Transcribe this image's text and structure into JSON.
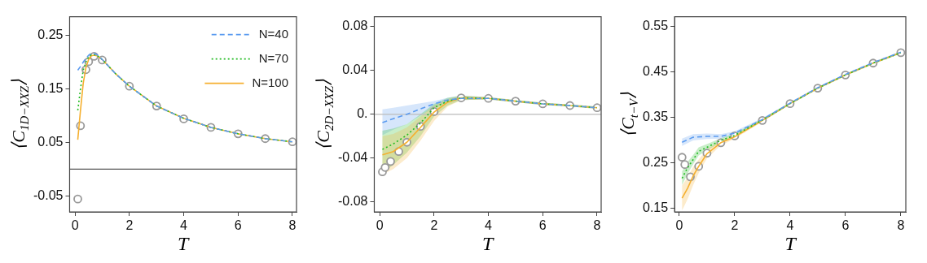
{
  "chart_data": [
    {
      "type": "line",
      "xlabel": "T",
      "ylabel": "⟨C$_{1D−XXZ}$⟩",
      "xlim": [
        -0.2,
        8.15
      ],
      "ylim": [
        -0.08,
        0.285
      ],
      "xticks": [
        0,
        2,
        4,
        6,
        8
      ],
      "yticks": [
        -0.05,
        0.05,
        0.15,
        0.25
      ],
      "legend": "top right",
      "ref_lines": [
        {
          "axis": "y",
          "value": 0,
          "color": "#555555"
        }
      ],
      "series": [
        {
          "name": "N=40",
          "color": "#5b9bf0",
          "line_style": "dashed",
          "marker": "none",
          "x": [
            0.1,
            0.2,
            0.3,
            0.4,
            0.5,
            0.6,
            0.7,
            0.8,
            1,
            1.5,
            2,
            3,
            4,
            5,
            6,
            7,
            8
          ],
          "values": [
            0.185,
            0.192,
            0.2,
            0.207,
            0.213,
            0.217,
            0.216,
            0.214,
            0.205,
            0.178,
            0.155,
            0.118,
            0.095,
            0.078,
            0.066,
            0.057,
            0.051
          ]
        },
        {
          "name": "N=70",
          "color": "#22bb22",
          "line_style": "dotted",
          "marker": "none",
          "x": [
            0.1,
            0.2,
            0.3,
            0.4,
            0.5,
            0.6,
            0.7,
            0.8,
            1,
            1.5,
            2,
            3,
            4,
            5,
            6,
            7,
            8
          ],
          "values": [
            0.11,
            0.15,
            0.185,
            0.2,
            0.21,
            0.214,
            0.214,
            0.213,
            0.205,
            0.178,
            0.155,
            0.118,
            0.095,
            0.078,
            0.066,
            0.057,
            0.051
          ]
        },
        {
          "name": "N=100",
          "color": "#f5b030",
          "line_style": "solid",
          "marker": "none",
          "x": [
            0.1,
            0.2,
            0.3,
            0.4,
            0.5,
            0.6,
            0.7,
            0.8,
            1,
            1.5,
            2,
            3,
            4,
            5,
            6,
            7,
            8
          ],
          "values": [
            0.055,
            0.11,
            0.16,
            0.19,
            0.205,
            0.212,
            0.213,
            0.212,
            0.205,
            0.178,
            0.155,
            0.118,
            0.095,
            0.078,
            0.066,
            0.057,
            0.051
          ]
        },
        {
          "type": "scatter",
          "color": "#999999",
          "marker": "circle",
          "x": [
            0.1,
            0.2,
            0.4,
            0.5,
            0.7,
            1,
            2,
            3,
            4,
            5,
            6,
            7,
            8
          ],
          "values": [
            -0.056,
            0.081,
            0.186,
            0.201,
            0.211,
            0.204,
            0.155,
            0.118,
            0.094,
            0.078,
            0.066,
            0.057,
            0.051
          ]
        }
      ]
    },
    {
      "type": "line",
      "xlabel": "T",
      "ylabel": "⟨C$_{2D−XXZ}$⟩",
      "xlim": [
        -0.2,
        8.15
      ],
      "ylim": [
        -0.089,
        0.089
      ],
      "xticks": [
        0,
        2,
        4,
        6,
        8
      ],
      "yticks": [
        -0.08,
        -0.04,
        {
          "value": 0,
          "label": "0."
        },
        0.04,
        0.08
      ],
      "ref_lines": [
        {
          "axis": "y",
          "value": 0,
          "color": "#bbbbbb"
        }
      ],
      "series": [
        {
          "color": "#5b9bf0",
          "line_style": "dashed",
          "marker": "none",
          "x": [
            0.1,
            0.5,
            1,
            1.5,
            2,
            2.5,
            3,
            4,
            5,
            6,
            7,
            8
          ],
          "values": [
            -0.0075,
            -0.004,
            0,
            0.005,
            0.0095,
            0.013,
            0.0145,
            0.0145,
            0.012,
            0.0095,
            0.008,
            0.006
          ],
          "lower": [
            -0.019,
            -0.014,
            -0.009,
            -0.001,
            0.006,
            0.011,
            0.013,
            0.0135,
            0.011,
            0.0085,
            0.007,
            0.005
          ],
          "upper": [
            0.0045,
            0.006,
            0.008,
            0.01,
            0.012,
            0.015,
            0.017,
            0.0155,
            0.013,
            0.0105,
            0.009,
            0.007
          ]
        },
        {
          "color": "#22bb22",
          "line_style": "dotted",
          "marker": "none",
          "x": [
            0.1,
            0.5,
            1,
            1.5,
            2,
            2.5,
            3,
            4,
            5,
            6,
            7,
            8
          ],
          "values": [
            -0.032,
            -0.027,
            -0.019,
            -0.008,
            0.006,
            0.012,
            0.015,
            0.0145,
            0.012,
            0.0095,
            0.008,
            0.006
          ],
          "lower": [
            -0.054,
            -0.046,
            -0.035,
            -0.02,
            -0.002,
            0.008,
            0.013,
            0.0135,
            0.011,
            0.0085,
            0.007,
            0.005
          ],
          "upper": [
            -0.015,
            -0.013,
            -0.009,
            0,
            0.0095,
            0.015,
            0.017,
            0.0155,
            0.013,
            0.0105,
            0.009,
            0.007
          ]
        },
        {
          "color": "#f5b030",
          "line_style": "solid",
          "marker": "none",
          "x": [
            0.1,
            0.5,
            1,
            1.5,
            2,
            2.5,
            3,
            4,
            5,
            6,
            7,
            8
          ],
          "values": [
            -0.037,
            -0.034,
            -0.0255,
            -0.012,
            0.002,
            0.011,
            0.015,
            0.0145,
            0.012,
            0.0095,
            0.008,
            0.006
          ],
          "lower": [
            -0.055,
            -0.05,
            -0.04,
            -0.024,
            -0.006,
            0.007,
            0.013,
            0.0135,
            0.011,
            0.0085,
            0.007,
            0.005
          ],
          "upper": [
            -0.02,
            -0.018,
            -0.012,
            -0.002,
            0.008,
            0.014,
            0.017,
            0.0155,
            0.013,
            0.0105,
            0.009,
            0.007
          ]
        },
        {
          "type": "scatter",
          "color": "#999999",
          "marker": "circle",
          "x": [
            0.1,
            0.2,
            0.4,
            0.7,
            1,
            1.5,
            2,
            3,
            4,
            5,
            6,
            7,
            8
          ],
          "values": [
            -0.0525,
            -0.0485,
            -0.043,
            -0.034,
            -0.0255,
            -0.011,
            0.0025,
            0.015,
            0.0145,
            0.012,
            0.0095,
            0.008,
            0.006
          ]
        }
      ]
    },
    {
      "type": "line",
      "xlabel": "T",
      "ylabel": "⟨C$_{t−V}$⟩",
      "xlim": [
        -0.17,
        8.18
      ],
      "ylim": [
        0.142,
        0.571
      ],
      "xticks": [
        0,
        2,
        4,
        6,
        8
      ],
      "yticks": [
        0.15,
        0.25,
        0.35,
        0.45,
        0.55
      ],
      "series": [
        {
          "color": "#5b9bf0",
          "line_style": "dashed",
          "marker": "none",
          "x": [
            0.1,
            0.5,
            1,
            1.5,
            2,
            3,
            4,
            5,
            6,
            7,
            8
          ],
          "values": [
            0.295,
            0.306,
            0.308,
            0.308,
            0.315,
            0.345,
            0.381,
            0.415,
            0.444,
            0.47,
            0.493
          ],
          "lower": [
            0.287,
            0.299,
            0.302,
            0.303,
            0.311,
            0.342,
            0.379,
            0.413,
            0.442,
            0.468,
            0.491
          ],
          "upper": [
            0.303,
            0.313,
            0.314,
            0.313,
            0.319,
            0.348,
            0.383,
            0.417,
            0.446,
            0.472,
            0.495
          ]
        },
        {
          "color": "#22bb22",
          "line_style": "dotted",
          "marker": "none",
          "x": [
            0.1,
            0.3,
            0.5,
            0.7,
            1,
            1.5,
            2,
            3,
            4,
            5,
            6,
            7,
            8
          ],
          "values": [
            0.216,
            0.239,
            0.257,
            0.275,
            0.284,
            0.299,
            0.31,
            0.344,
            0.38,
            0.414,
            0.443,
            0.469,
            0.492
          ],
          "lower": [
            0.201,
            0.226,
            0.247,
            0.266,
            0.277,
            0.294,
            0.306,
            0.341,
            0.378,
            0.412,
            0.441,
            0.467,
            0.49
          ],
          "upper": [
            0.231,
            0.252,
            0.267,
            0.284,
            0.291,
            0.304,
            0.314,
            0.347,
            0.382,
            0.416,
            0.445,
            0.471,
            0.494
          ]
        },
        {
          "color": "#f5b030",
          "line_style": "solid",
          "marker": "none",
          "x": [
            0.1,
            0.3,
            0.5,
            0.7,
            1,
            1.5,
            2,
            3,
            4,
            5,
            6,
            7,
            8
          ],
          "values": [
            0.172,
            0.194,
            0.221,
            0.242,
            0.27,
            0.294,
            0.307,
            0.343,
            0.38,
            0.414,
            0.443,
            0.469,
            0.492
          ],
          "lower": [
            0.145,
            0.17,
            0.201,
            0.227,
            0.26,
            0.288,
            0.303,
            0.34,
            0.378,
            0.412,
            0.441,
            0.467,
            0.49
          ],
          "upper": [
            0.2,
            0.218,
            0.241,
            0.257,
            0.28,
            0.3,
            0.311,
            0.346,
            0.382,
            0.416,
            0.445,
            0.471,
            0.494
          ]
        },
        {
          "type": "scatter",
          "color": "#999999",
          "marker": "circle",
          "x": [
            0.1,
            0.2,
            0.4,
            0.7,
            1,
            1.5,
            2,
            3,
            4,
            5,
            6,
            7,
            8
          ],
          "values": [
            0.262,
            0.246,
            0.219,
            0.242,
            0.271,
            0.294,
            0.309,
            0.343,
            0.38,
            0.414,
            0.443,
            0.469,
            0.492
          ]
        }
      ]
    }
  ]
}
